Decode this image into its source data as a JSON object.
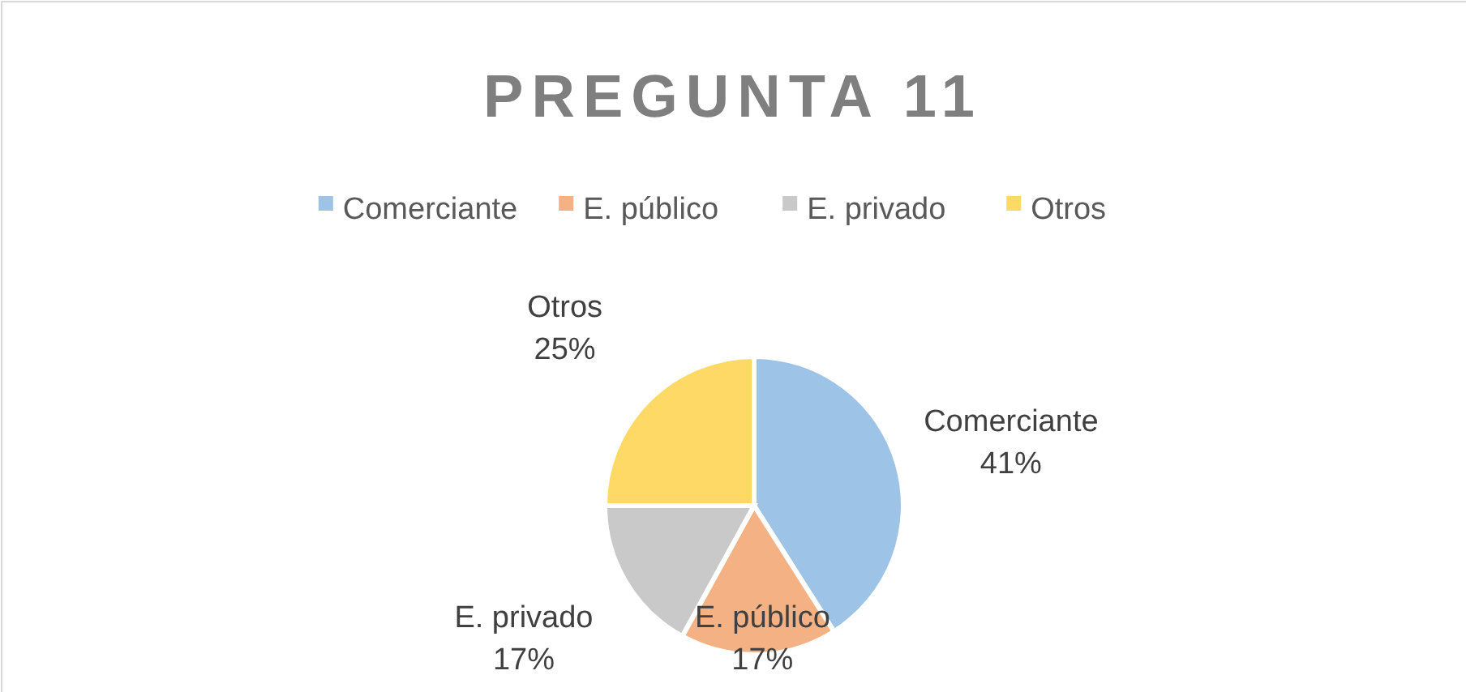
{
  "chart_data": {
    "type": "pie",
    "title": "PREGUNTA 11",
    "categories": [
      "Comerciante",
      "E. público",
      "E. privado",
      "Otros"
    ],
    "values": [
      41,
      17,
      17,
      25
    ],
    "colors": [
      "#9dc3e6",
      "#f4b183",
      "#c9c9c9",
      "#ffd966"
    ],
    "legend": "top",
    "value_labels": [
      "41%",
      "17%",
      "17%",
      "25%"
    ]
  }
}
